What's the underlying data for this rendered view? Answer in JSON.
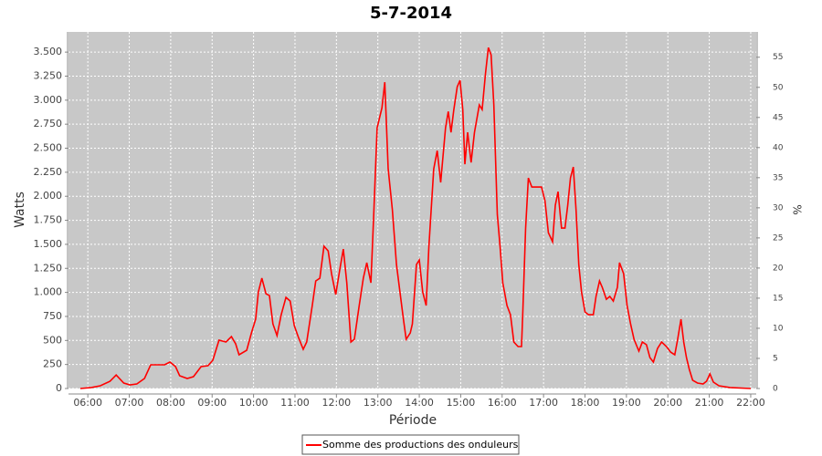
{
  "chart_data": {
    "type": "line",
    "title": "5-7-2014",
    "x_label": "Période",
    "y_label": "Watts",
    "y2_label": "%",
    "x": [
      "05:49",
      "06:05",
      "06:18",
      "06:32",
      "06:41",
      "06:52",
      "07:01",
      "07:11",
      "07:22",
      "07:31",
      "07:51",
      "07:59",
      "08:07",
      "08:13",
      "08:24",
      "08:33",
      "08:44",
      "08:54",
      "09:01",
      "09:10",
      "09:20",
      "09:28",
      "09:34",
      "09:39",
      "09:50",
      "09:57",
      "10:03",
      "10:07",
      "10:12",
      "10:18",
      "10:23",
      "10:28",
      "10:34",
      "10:40",
      "10:47",
      "10:53",
      "10:59",
      "11:05",
      "11:12",
      "11:17",
      "11:25",
      "11:30",
      "11:36",
      "11:42",
      "11:48",
      "11:53",
      "11:59",
      "12:05",
      "12:10",
      "12:15",
      "12:21",
      "12:26",
      "12:33",
      "12:39",
      "12:44",
      "12:50",
      "12:54",
      "12:59",
      "13:06",
      "13:10",
      "13:15",
      "13:21",
      "13:27",
      "13:32",
      "13:37",
      "13:41",
      "13:47",
      "13:50",
      "13:56",
      "14:00",
      "14:05",
      "14:10",
      "14:14",
      "14:21",
      "14:26",
      "14:31",
      "14:38",
      "14:42",
      "14:46",
      "14:50",
      "14:55",
      "14:59",
      "15:03",
      "15:06",
      "15:10",
      "15:15",
      "15:20",
      "15:27",
      "15:31",
      "15:36",
      "15:40",
      "15:44",
      "15:48",
      "15:53",
      "15:57",
      "16:01",
      "16:07",
      "16:12",
      "16:17",
      "16:23",
      "16:28",
      "16:30",
      "16:34",
      "16:38",
      "16:43",
      "16:50",
      "16:57",
      "17:02",
      "17:07",
      "17:13",
      "17:17",
      "17:21",
      "17:26",
      "17:31",
      "17:35",
      "17:39",
      "17:43",
      "17:47",
      "17:51",
      "17:55",
      "18:00",
      "18:05",
      "18:12",
      "18:16",
      "18:21",
      "18:25",
      "18:31",
      "18:36",
      "18:41",
      "18:47",
      "18:50",
      "18:56",
      "19:01",
      "19:06",
      "19:11",
      "19:18",
      "19:23",
      "19:29",
      "19:34",
      "19:39",
      "19:45",
      "19:51",
      "19:58",
      "20:04",
      "20:10",
      "20:14",
      "20:19",
      "20:23",
      "20:27",
      "20:31",
      "20:36",
      "20:43",
      "20:51",
      "20:56",
      "21:01",
      "21:06",
      "21:14",
      "21:30",
      "22:00"
    ],
    "series": [
      {
        "name": "Somme des productions des onduleurs",
        "color": "#ff0000",
        "values": [
          0,
          10,
          28,
          75,
          140,
          57,
          38,
          47,
          104,
          247,
          247,
          275,
          228,
          133,
          104,
          123,
          228,
          237,
          294,
          503,
          484,
          540,
          465,
          351,
          398,
          579,
          721,
          1005,
          1148,
          986,
          967,
          673,
          550,
          768,
          948,
          910,
          654,
          531,
          408,
          484,
          863,
          1119,
          1148,
          1480,
          1432,
          1195,
          977,
          1242,
          1451,
          1100,
          484,
          512,
          863,
          1148,
          1309,
          1100,
          1811,
          2712,
          2921,
          3187,
          2286,
          1859,
          1290,
          1005,
          721,
          512,
          579,
          673,
          1290,
          1337,
          1005,
          863,
          1480,
          2286,
          2475,
          2143,
          2712,
          2883,
          2665,
          2902,
          3139,
          3206,
          2902,
          2333,
          2665,
          2352,
          2665,
          2950,
          2902,
          3281,
          3547,
          3471,
          2950,
          1811,
          1480,
          1100,
          863,
          768,
          484,
          436,
          436,
          816,
          1669,
          2191,
          2096,
          2096,
          2096,
          1954,
          1622,
          1527,
          1906,
          2049,
          1669,
          1669,
          1906,
          2191,
          2305,
          1859,
          1290,
          1005,
          797,
          768,
          768,
          958,
          1119,
          1053,
          929,
          958,
          910,
          1053,
          1309,
          1195,
          863,
          673,
          512,
          389,
          484,
          455,
          322,
          275,
          417,
          484,
          436,
          379,
          351,
          503,
          721,
          484,
          322,
          199,
          85,
          57,
          47,
          76,
          152,
          66,
          28,
          10,
          0
        ]
      }
    ],
    "xlim": [
      "05:32",
      "22:08"
    ],
    "xticks": [
      "06:00",
      "07:00",
      "08:00",
      "09:00",
      "10:00",
      "11:00",
      "12:00",
      "13:00",
      "14:00",
      "15:00",
      "16:00",
      "17:00",
      "18:00",
      "19:00",
      "20:00",
      "21:00",
      "22:00"
    ],
    "ylim": [
      0,
      3710
    ],
    "yticks": [
      0,
      250,
      500,
      750,
      {
        "value": 1000,
        "label": "1.000"
      },
      {
        "value": 1250,
        "label": "1.250"
      },
      {
        "value": 1500,
        "label": "1.500"
      },
      {
        "value": 1750,
        "label": "1.750"
      },
      {
        "value": 2000,
        "label": "2.000"
      },
      {
        "value": 2250,
        "label": "2.250"
      },
      {
        "value": 2500,
        "label": "2.500"
      },
      {
        "value": 2750,
        "label": "2.750"
      },
      {
        "value": 3000,
        "label": "3.000"
      },
      {
        "value": 3250,
        "label": "3.250"
      },
      {
        "value": 3500,
        "label": "3.500"
      }
    ],
    "y2lim": [
      0,
      59.2
    ],
    "y2ticks": [
      0,
      5,
      10,
      15,
      20,
      25,
      30,
      35,
      40,
      45,
      50,
      55
    ],
    "grid": true
  }
}
